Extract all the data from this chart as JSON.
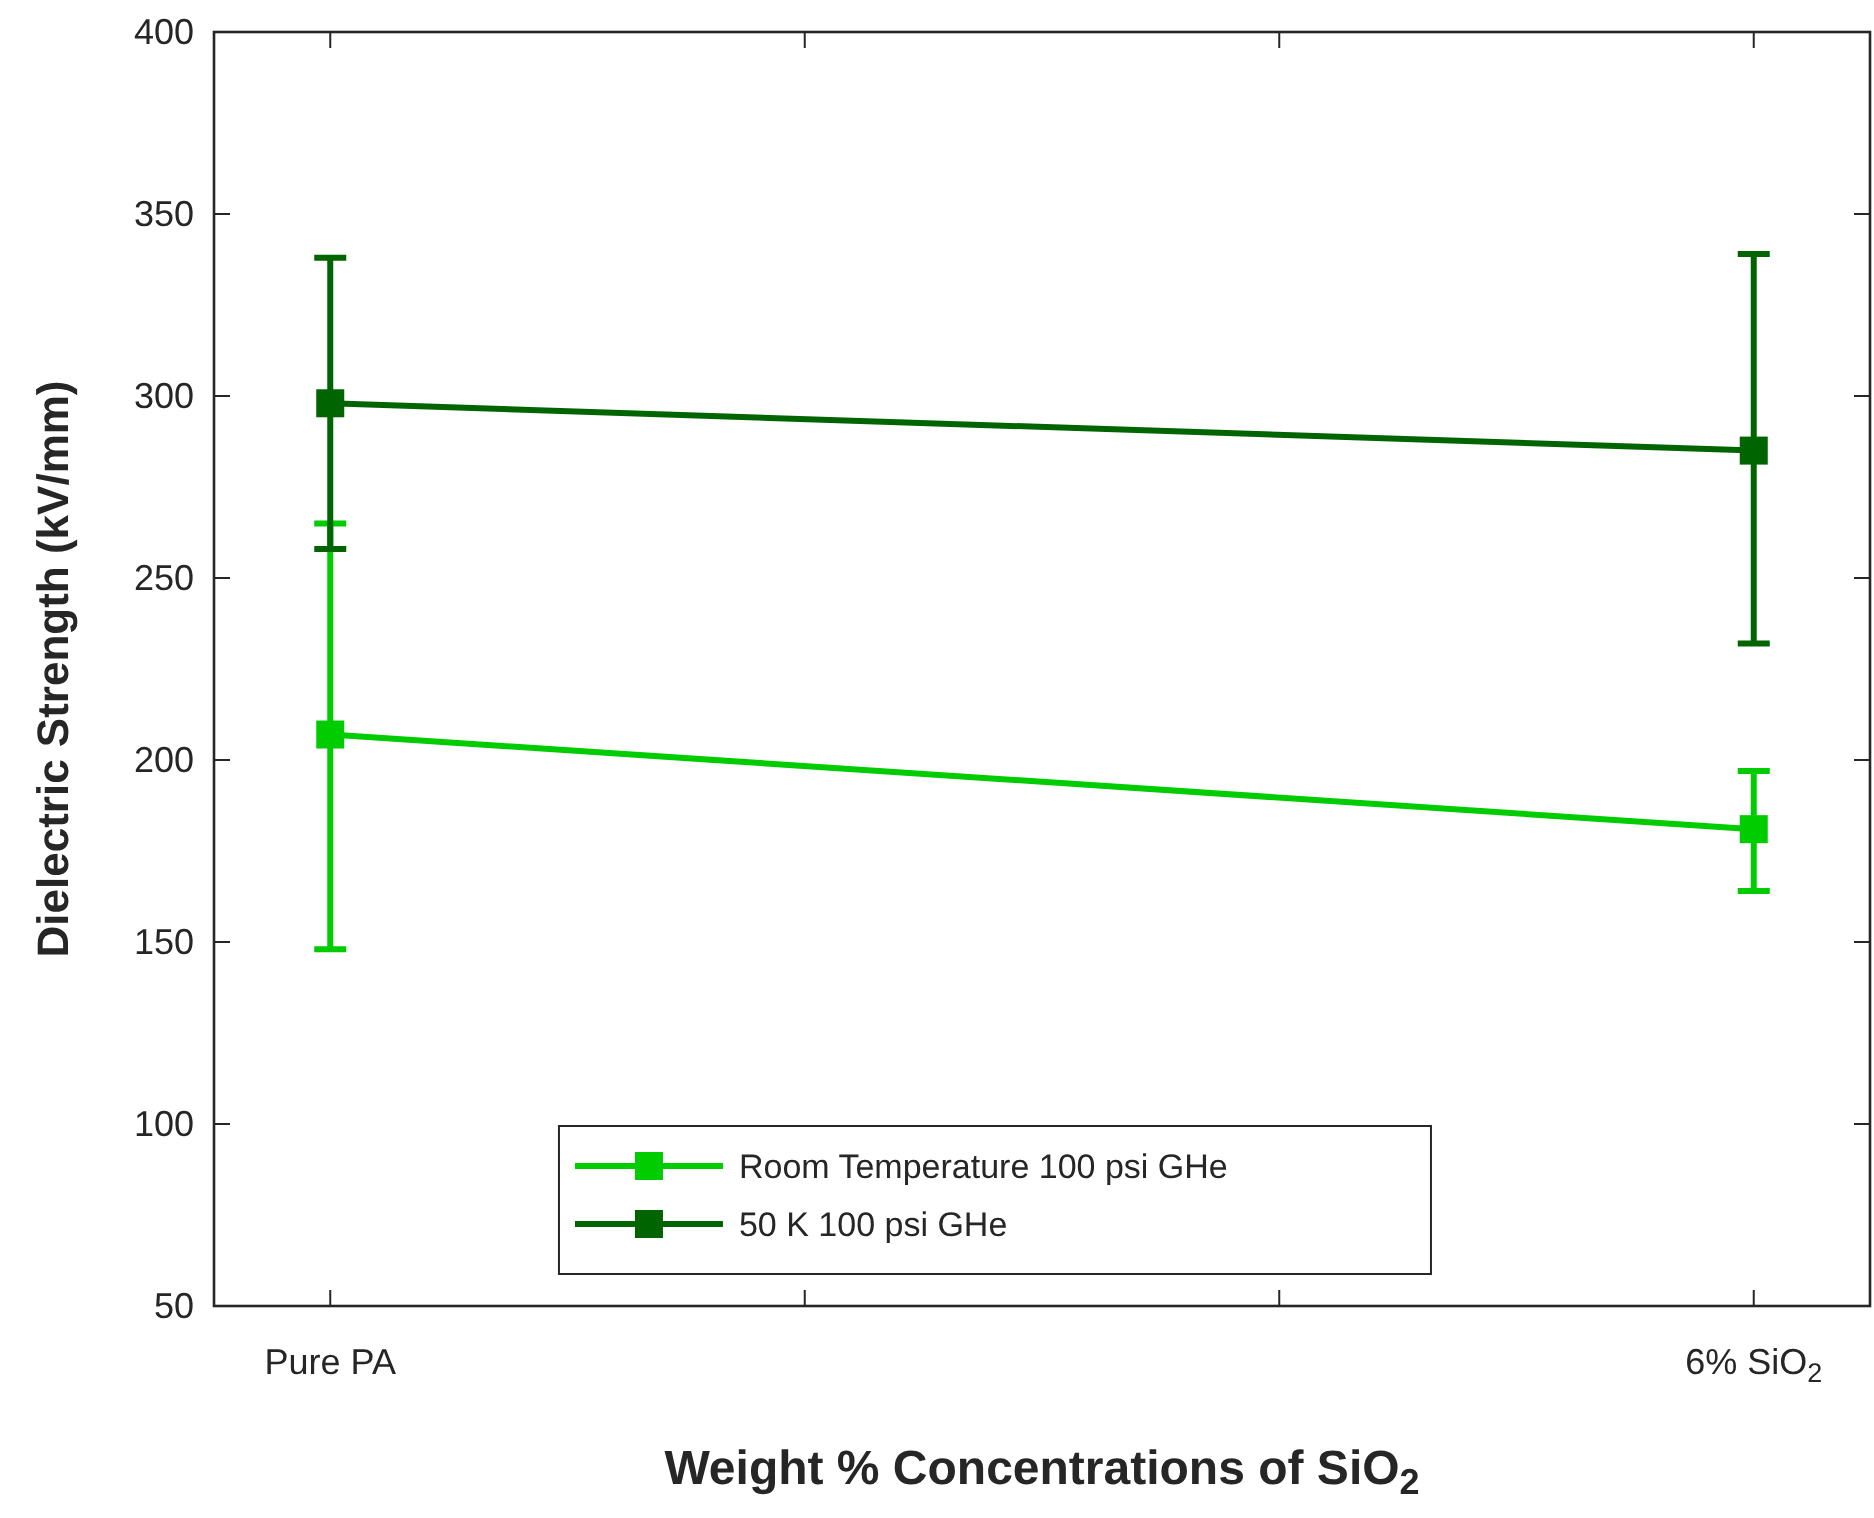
{
  "chart_data": {
    "type": "line",
    "xlabel": "Weight % Concentrations of SiO$_{2}$",
    "ylabel": "Dielectric Strength (kV/mm)",
    "categories": [
      "Pure PA",
      null,
      null,
      "6% SiO$_{2}$"
    ],
    "ylim": [
      50,
      400
    ],
    "yticks": [
      50,
      100,
      150,
      200,
      250,
      300,
      350,
      400
    ],
    "series": [
      {
        "name": "Room Temperature 100 psi GHe",
        "color": "#00cc00",
        "values": [
          207,
          null,
          null,
          181
        ],
        "errors": [
          [
            148,
            265
          ],
          null,
          null,
          [
            164,
            197
          ]
        ]
      },
      {
        "name": "50 K 100 psi GHe",
        "color": "#006400",
        "values": [
          298,
          null,
          null,
          285
        ],
        "errors": [
          [
            258,
            338
          ],
          null,
          null,
          [
            232,
            339
          ]
        ]
      }
    ],
    "marker": "square",
    "line_style": "solid",
    "grid": false,
    "legend": "bottom"
  }
}
